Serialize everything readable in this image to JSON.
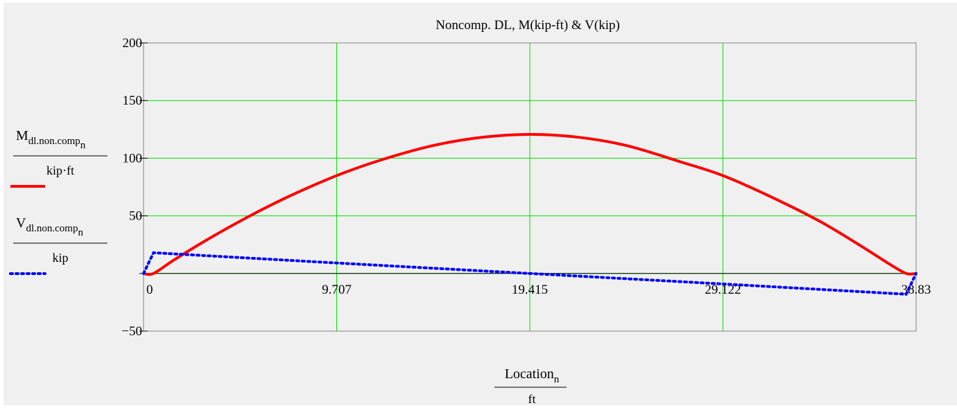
{
  "chart_data": {
    "type": "line",
    "title": "Noncomp. DL, M(kip-ft) & V(kip)",
    "x_ticks": [
      "0",
      "9.707",
      "19.415",
      "29.122",
      "38.83"
    ],
    "y_ticks": [
      "200",
      "150",
      "100",
      "50",
      "−50"
    ],
    "xlim": [
      0,
      38.83
    ],
    "ylim": [
      -50,
      200
    ],
    "grid": true,
    "grid_color": "#00e000",
    "xlabel": {
      "main": "Location",
      "sub": "n",
      "unit": "ft"
    },
    "legend_position": "left",
    "series": [
      {
        "label_main": "M",
        "label_sub": "dl.non.comp",
        "label_subsub": "n",
        "unit": "kip·ft",
        "color": "#ff0000",
        "style": "solid",
        "x": [
          0,
          0.5,
          1.5,
          3,
          4.854,
          7,
          9.707,
          12,
          14.561,
          17,
          19.415,
          21.8,
          24.268,
          27,
          29.122,
          31.5,
          33.976,
          36,
          37.5,
          38.33,
          38.83
        ],
        "y": [
          0,
          0,
          11.4,
          27.3,
          45.4,
          64.4,
          84.9,
          98.8,
          111.0,
          118.1,
          120.7,
          118.3,
          111.0,
          96.8,
          84.9,
          66.8,
          45.4,
          24.5,
          8.1,
          0,
          0
        ]
      },
      {
        "label_main": "V",
        "label_sub": "dl.non.comp",
        "label_subsub": "n",
        "unit": "kip",
        "color": "#0000ff",
        "style": "dotted",
        "x": [
          0,
          0.5,
          9.707,
          19.415,
          29.122,
          38.33,
          38.83
        ],
        "y": [
          0,
          18,
          9.1,
          0,
          -9.1,
          -18,
          0
        ]
      }
    ]
  }
}
